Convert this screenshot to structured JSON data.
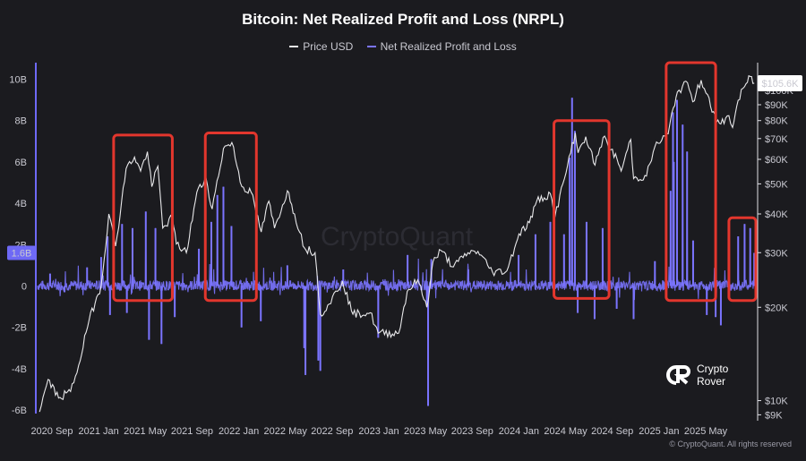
{
  "chart_data": {
    "type": "line",
    "title": "Bitcoin: Net Realized Profit and Loss (NRPL)",
    "legend": [
      "Price USD",
      "Net Realized Profit and Loss"
    ],
    "legend_placement": "top-center",
    "x_tick_labels": [
      "2020 Sep",
      "2021 Jan",
      "2021 May",
      "2021 Sep",
      "2022 Jan",
      "2022 May",
      "2022 Sep",
      "2023 Jan",
      "2023 May",
      "2023 Sep",
      "2024 Jan",
      "2024 May",
      "2024 Sep",
      "2025 Jan",
      "2025 May"
    ],
    "x_range": [
      "2020-07-15",
      "2025-06-05"
    ],
    "left_axis": {
      "tick_labels": [
        "-6B",
        "-4B",
        "-2B",
        "0",
        "2B",
        "4B",
        "6B",
        "8B",
        "10B"
      ],
      "tick_values": [
        -6,
        -4,
        -2,
        0,
        2,
        4,
        6,
        8,
        10
      ],
      "unit": "B USD",
      "range": [
        -6.6,
        10.8
      ],
      "highlight_label": "1.6B",
      "highlight_value": 1.6
    },
    "right_axis": {
      "scale": "log",
      "tick_labels": [
        "$9K",
        "$10K",
        "$20K",
        "$30K",
        "$40K",
        "$50K",
        "$60K",
        "$70K",
        "$80K",
        "$90K",
        "$100K"
      ],
      "tick_values": [
        9000,
        10000,
        20000,
        30000,
        40000,
        50000,
        60000,
        70000,
        80000,
        90000,
        100000
      ],
      "range": [
        8500,
        123000
      ],
      "current_label": "$105.6K",
      "current_value": 105600
    },
    "grid": false,
    "series": [
      {
        "name": "Price USD",
        "axis": "right",
        "color": "#e8e8ea",
        "points": [
          [
            "2020-07-20",
            9200
          ],
          [
            "2020-08-10",
            11700
          ],
          [
            "2020-09-05",
            10200
          ],
          [
            "2020-10-05",
            10700
          ],
          [
            "2020-10-25",
            13000
          ],
          [
            "2020-11-20",
            18200
          ],
          [
            "2020-12-20",
            23500
          ],
          [
            "2021-01-08",
            40000
          ],
          [
            "2021-01-25",
            31500
          ],
          [
            "2021-02-20",
            56000
          ],
          [
            "2021-03-13",
            61000
          ],
          [
            "2021-03-28",
            55000
          ],
          [
            "2021-04-14",
            63500
          ],
          [
            "2021-04-25",
            49000
          ],
          [
            "2021-05-10",
            57000
          ],
          [
            "2021-05-22",
            36000
          ],
          [
            "2021-06-15",
            39000
          ],
          [
            "2021-06-25",
            32000
          ],
          [
            "2021-07-20",
            30000
          ],
          [
            "2021-08-15",
            47000
          ],
          [
            "2021-09-07",
            52000
          ],
          [
            "2021-09-22",
            41500
          ],
          [
            "2021-10-20",
            65000
          ],
          [
            "2021-11-10",
            68000
          ],
          [
            "2021-12-05",
            49000
          ],
          [
            "2021-12-28",
            47000
          ],
          [
            "2022-01-22",
            35000
          ],
          [
            "2022-02-10",
            44000
          ],
          [
            "2022-02-24",
            36000
          ],
          [
            "2022-03-28",
            47500
          ],
          [
            "2022-04-15",
            40000
          ],
          [
            "2022-05-10",
            31000
          ],
          [
            "2022-06-05",
            30000
          ],
          [
            "2022-06-18",
            19000
          ],
          [
            "2022-07-10",
            20500
          ],
          [
            "2022-08-12",
            24300
          ],
          [
            "2022-09-07",
            19000
          ],
          [
            "2022-10-20",
            19200
          ],
          [
            "2022-11-09",
            16500
          ],
          [
            "2022-12-30",
            16500
          ],
          [
            "2023-01-20",
            22500
          ],
          [
            "2023-02-15",
            24500
          ],
          [
            "2023-03-10",
            20000
          ],
          [
            "2023-03-25",
            28000
          ],
          [
            "2023-04-14",
            30500
          ],
          [
            "2023-05-15",
            27000
          ],
          [
            "2023-06-20",
            30000
          ],
          [
            "2023-07-15",
            30300
          ],
          [
            "2023-08-20",
            26000
          ],
          [
            "2023-09-25",
            26200
          ],
          [
            "2023-10-25",
            34500
          ],
          [
            "2023-11-20",
            37500
          ],
          [
            "2023-12-08",
            44000
          ],
          [
            "2024-01-11",
            46500
          ],
          [
            "2024-01-23",
            39500
          ],
          [
            "2024-02-15",
            52000
          ],
          [
            "2024-03-13",
            73000
          ],
          [
            "2024-03-20",
            63000
          ],
          [
            "2024-04-08",
            71000
          ],
          [
            "2024-05-01",
            57500
          ],
          [
            "2024-05-21",
            70500
          ],
          [
            "2024-06-25",
            60000
          ],
          [
            "2024-07-05",
            55000
          ],
          [
            "2024-07-29",
            69500
          ],
          [
            "2024-08-05",
            52000
          ],
          [
            "2024-09-06",
            53000
          ],
          [
            "2024-09-27",
            66000
          ],
          [
            "2024-10-30",
            72500
          ],
          [
            "2024-11-12",
            88000
          ],
          [
            "2024-11-22",
            99000
          ],
          [
            "2024-12-17",
            106000
          ],
          [
            "2024-12-30",
            92000
          ],
          [
            "2025-01-20",
            108000
          ],
          [
            "2025-02-05",
            97000
          ],
          [
            "2025-02-27",
            79000
          ],
          [
            "2025-03-10",
            78000
          ],
          [
            "2025-03-30",
            83000
          ],
          [
            "2025-04-08",
            76000
          ],
          [
            "2025-04-22",
            93000
          ],
          [
            "2025-05-08",
            103000
          ],
          [
            "2025-05-22",
            111000
          ],
          [
            "2025-06-01",
            105600
          ]
        ]
      },
      {
        "name": "Net Realized Profit and Loss",
        "axis": "left",
        "color": "#7b74ff",
        "baseline_noise_b": 0.25,
        "spikes": [
          [
            "2020-08-15",
            0.6
          ],
          [
            "2020-09-20",
            -0.3
          ],
          [
            "2020-11-15",
            0.9
          ],
          [
            "2020-12-20",
            1.4
          ],
          [
            "2021-01-05",
            2.4
          ],
          [
            "2021-01-11",
            -1.4
          ],
          [
            "2021-02-10",
            3.0
          ],
          [
            "2021-02-22",
            -1.3
          ],
          [
            "2021-03-08",
            2.8
          ],
          [
            "2021-04-10",
            3.6
          ],
          [
            "2021-04-18",
            -2.6
          ],
          [
            "2021-05-04",
            2.8
          ],
          [
            "2021-05-19",
            -2.8
          ],
          [
            "2021-06-21",
            -1.5
          ],
          [
            "2021-08-20",
            1.8
          ],
          [
            "2021-09-05",
            2.3
          ],
          [
            "2021-09-20",
            3.1
          ],
          [
            "2021-10-05",
            4.4
          ],
          [
            "2021-10-20",
            4.8
          ],
          [
            "2021-11-09",
            2.9
          ],
          [
            "2021-12-04",
            -2.0
          ],
          [
            "2022-01-21",
            -1.7
          ],
          [
            "2022-03-28",
            1.0
          ],
          [
            "2022-05-09",
            -3.0
          ],
          [
            "2022-05-12",
            -4.3
          ],
          [
            "2022-06-13",
            -3.6
          ],
          [
            "2022-06-18",
            -4.1
          ],
          [
            "2022-08-14",
            0.8
          ],
          [
            "2022-11-09",
            -2.5
          ],
          [
            "2023-01-21",
            1.5
          ],
          [
            "2023-03-10",
            -1.0
          ],
          [
            "2023-03-13",
            -5.8
          ],
          [
            "2023-03-21",
            1.3
          ],
          [
            "2023-06-21",
            0.8
          ],
          [
            "2023-10-24",
            1.5
          ],
          [
            "2023-12-05",
            2.5
          ],
          [
            "2024-01-11",
            3.1
          ],
          [
            "2024-02-14",
            2.5
          ],
          [
            "2024-02-28",
            6.2
          ],
          [
            "2024-03-05",
            9.1
          ],
          [
            "2024-03-12",
            7.5
          ],
          [
            "2024-03-19",
            -1.3
          ],
          [
            "2024-04-10",
            3.1
          ],
          [
            "2024-04-30",
            -1.6
          ],
          [
            "2024-05-20",
            2.8
          ],
          [
            "2024-06-24",
            -1.1
          ],
          [
            "2024-08-05",
            -1.6
          ],
          [
            "2024-09-27",
            1.2
          ],
          [
            "2024-11-05",
            4.6
          ],
          [
            "2024-11-11",
            8.4
          ],
          [
            "2024-11-13",
            6.0
          ],
          [
            "2024-11-21",
            9.0
          ],
          [
            "2024-12-05",
            7.8
          ],
          [
            "2024-12-16",
            6.5
          ],
          [
            "2024-12-31",
            2.2
          ],
          [
            "2025-02-03",
            -1.4
          ],
          [
            "2025-02-25",
            -1.5
          ],
          [
            "2025-03-10",
            -1.9
          ],
          [
            "2025-04-22",
            2.4
          ],
          [
            "2025-05-08",
            3.0
          ],
          [
            "2025-05-22",
            2.8
          ],
          [
            "2025-06-01",
            1.6
          ]
        ]
      }
    ],
    "annotations": [
      {
        "type": "highlight-box",
        "color": "#e2362d",
        "x_start": "2021-01-20",
        "x_end": "2021-06-15",
        "y_top_b": 7.3,
        "y_bottom_b": -0.7
      },
      {
        "type": "highlight-box",
        "color": "#e2362d",
        "x_start": "2021-09-05",
        "x_end": "2022-01-10",
        "y_top_b": 7.4,
        "y_bottom_b": -0.7
      },
      {
        "type": "highlight-box",
        "color": "#e2362d",
        "x_start": "2024-01-20",
        "x_end": "2024-06-05",
        "y_top_b": 8.0,
        "y_bottom_b": -0.6
      },
      {
        "type": "highlight-box",
        "color": "#e2362d",
        "x_start": "2024-10-25",
        "x_end": "2025-02-25",
        "y_top_b": 10.8,
        "y_bottom_b": -0.7
      },
      {
        "type": "highlight-box",
        "color": "#e2362d",
        "x_start": "2025-03-30",
        "x_end": "2025-06-05",
        "y_top_b": 3.3,
        "y_bottom_b": -0.7
      }
    ]
  },
  "watermark": "CryptoQuant",
  "brand": {
    "line1": "Crypto",
    "line2": "Rover"
  },
  "copyright": "© CryptoQuant. All rights reserved"
}
